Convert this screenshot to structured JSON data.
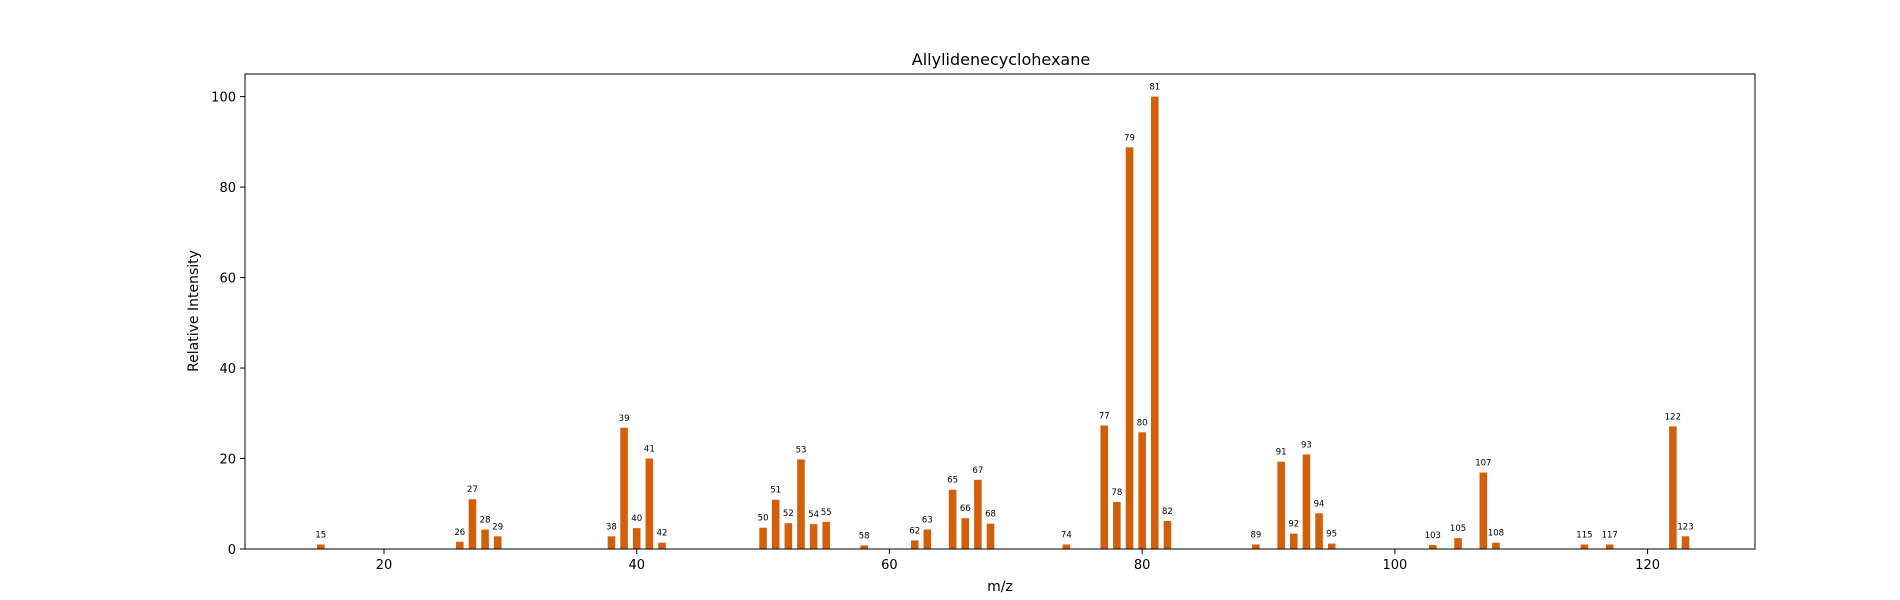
{
  "chart_data": {
    "type": "bar",
    "title": "Allylidenecyclohexane",
    "xlabel": "m/z",
    "ylabel": "Relative Intensity",
    "xlim": [
      9,
      128.5
    ],
    "ylim": [
      0,
      105
    ],
    "xticks": [
      20,
      40,
      60,
      80,
      100,
      120
    ],
    "yticks": [
      0,
      20,
      40,
      60,
      80,
      100
    ],
    "grid": false,
    "bar_color": "#d35f0a",
    "series": [
      {
        "x": [
          15,
          26,
          27,
          28,
          29,
          38,
          39,
          40,
          41,
          42,
          50,
          51,
          52,
          53,
          54,
          55,
          58,
          62,
          63,
          65,
          66,
          67,
          68,
          74,
          77,
          78,
          79,
          80,
          81,
          82,
          89,
          91,
          92,
          93,
          94,
          95,
          103,
          105,
          107,
          108,
          115,
          117,
          122,
          123
        ],
        "values": [
          1.0,
          1.6,
          11.0,
          4.3,
          2.8,
          2.8,
          26.8,
          4.6,
          20.0,
          1.4,
          4.7,
          10.9,
          5.7,
          19.8,
          5.5,
          6.0,
          0.8,
          1.9,
          4.3,
          13.1,
          6.8,
          15.3,
          5.6,
          1.0,
          27.3,
          10.4,
          88.8,
          25.8,
          100.0,
          6.2,
          1.0,
          19.3,
          3.4,
          20.9,
          7.9,
          1.2,
          0.9,
          2.4,
          16.9,
          1.4,
          1.0,
          1.0,
          27.1,
          2.8
        ]
      }
    ]
  }
}
